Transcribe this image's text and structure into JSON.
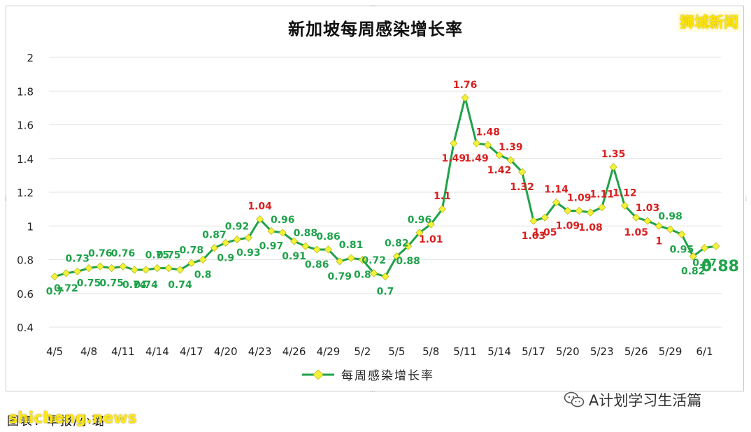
{
  "title": "新加坡每周感染增长率",
  "watermark": "狮城新闻",
  "credit": "图表：早报/小璐",
  "site": "shicheng.news",
  "account": "A计划学习生活篇",
  "colors": {
    "line": "#1fa24a",
    "marker": "#f2f23a",
    "label_green": "#1fa24a",
    "label_red": "#d91e1e",
    "grid": "#e3e3e3"
  },
  "chart_data": {
    "type": "line",
    "title": "新加坡每周感染增长率",
    "xlabel": "",
    "ylabel": "",
    "ylim": [
      0.4,
      2
    ],
    "yticks": [
      "0.4",
      "0.6",
      "0.8",
      "1",
      "1.2",
      "1.4",
      "1.6",
      "1.8",
      "2"
    ],
    "xtick_labels": [
      "4/5",
      "4/8",
      "4/11",
      "4/14",
      "4/17",
      "4/20",
      "4/23",
      "4/26",
      "4/29",
      "5/2",
      "5/5",
      "5/8",
      "5/11",
      "5/14",
      "5/17",
      "5/20",
      "5/23",
      "5/26",
      "5/29",
      "6/1"
    ],
    "grid": true,
    "legend_position": "bottom",
    "series": [
      {
        "name": "每周感染增长率",
        "labels": [
          "4/5",
          "4/6",
          "4/7",
          "4/8",
          "4/9",
          "4/10",
          "4/11",
          "4/12",
          "4/13",
          "4/14",
          "4/15",
          "4/16",
          "4/17",
          "4/18",
          "4/19",
          "4/20",
          "4/21",
          "4/22",
          "4/23",
          "4/24",
          "4/25",
          "4/26",
          "4/27",
          "4/28",
          "4/29",
          "4/30",
          "5/1",
          "5/2",
          "5/3",
          "5/4",
          "5/5",
          "5/6",
          "5/7",
          "5/8",
          "5/9",
          "5/10",
          "5/11",
          "5/12",
          "5/13",
          "5/14",
          "5/15",
          "5/16",
          "5/17",
          "5/18",
          "5/19",
          "5/20",
          "5/21",
          "5/22",
          "5/23",
          "5/24",
          "5/25",
          "5/26",
          "5/27",
          "5/28",
          "5/29",
          "5/30",
          "5/31",
          "6/1",
          "6/2"
        ],
        "values": [
          0.7,
          0.72,
          0.73,
          0.75,
          0.76,
          0.75,
          0.76,
          0.74,
          0.74,
          0.75,
          0.75,
          0.74,
          0.78,
          0.8,
          0.87,
          0.9,
          0.92,
          0.93,
          1.04,
          0.97,
          0.96,
          0.91,
          0.88,
          0.86,
          0.86,
          0.79,
          0.81,
          0.8,
          0.72,
          0.7,
          0.82,
          0.88,
          0.96,
          1.01,
          1.1,
          1.49,
          1.76,
          1.49,
          1.48,
          1.42,
          1.39,
          1.32,
          1.03,
          1.05,
          1.14,
          1.09,
          1.09,
          1.08,
          1.11,
          1.35,
          1.12,
          1.05,
          1.03,
          1,
          0.98,
          0.95,
          0.82,
          0.87,
          0.88
        ],
        "value_labels": [
          "0.7",
          "0.72",
          "0.73",
          "0.75",
          "0.76",
          "0.75",
          "0.76",
          "0.74",
          "0.74",
          "0.75",
          "0.75",
          "0.74",
          "0.78",
          "0.8",
          "0.87",
          "0.9",
          "0.92",
          "0.93",
          "1.04",
          "0.97",
          "0.96",
          "0.91",
          "0.88",
          "0.86",
          "0.86",
          "0.79",
          "0.81",
          "0.8",
          "0.72",
          "0.7",
          "0.82",
          "0.88",
          "0.96",
          "1.01",
          "1.1",
          "1.49",
          "1.76",
          "1.49",
          "1.48",
          "1.42",
          "1.39",
          "1.32",
          "1.03",
          "1.05",
          "1.14",
          "1.09",
          "1.09",
          "1.08",
          "1.11",
          "1.35",
          "1.12",
          "1.05",
          "1.03",
          "1",
          "0.98",
          "0.95",
          "0.82",
          "0.87",
          "0.88"
        ],
        "label_colors": [
          "g",
          "g",
          "g",
          "g",
          "g",
          "g",
          "g",
          "g",
          "g",
          "g",
          "g",
          "g",
          "g",
          "g",
          "g",
          "g",
          "g",
          "g",
          "r",
          "g",
          "g",
          "g",
          "g",
          "g",
          "g",
          "g",
          "g",
          "g",
          "g",
          "g",
          "g",
          "g",
          "g",
          "r",
          "r",
          "r",
          "r",
          "r",
          "r",
          "r",
          "r",
          "r",
          "r",
          "r",
          "r",
          "r",
          "r",
          "r",
          "r",
          "r",
          "r",
          "r",
          "r",
          "r",
          "g",
          "g",
          "g",
          "g",
          "g"
        ],
        "last_value_label": "0.88"
      }
    ]
  }
}
